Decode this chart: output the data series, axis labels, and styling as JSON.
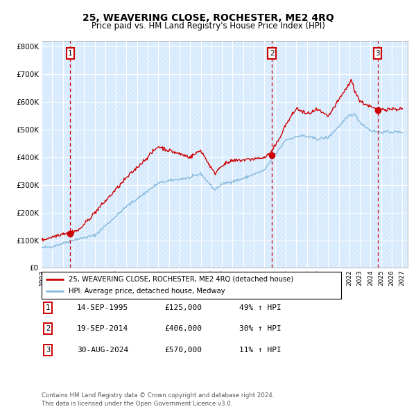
{
  "title": "25, WEAVERING CLOSE, ROCHESTER, ME2 4RQ",
  "subtitle": "Price paid vs. HM Land Registry's House Price Index (HPI)",
  "bg_color": "#ddeeff",
  "grid_color": "#ffffff",
  "red_line_color": "#cc0000",
  "blue_line_color": "#88bbdd",
  "sale_marker_color": "#cc0000",
  "dashed_line_color": "#cc0000",
  "sales": [
    {
      "date_num": 1995.71,
      "price": 125000,
      "label": "1"
    },
    {
      "date_num": 2014.72,
      "price": 406000,
      "label": "2"
    },
    {
      "date_num": 2024.66,
      "price": 570000,
      "label": "3"
    }
  ],
  "legend_entries": [
    "25, WEAVERING CLOSE, ROCHESTER, ME2 4RQ (detached house)",
    "HPI: Average price, detached house, Medway"
  ],
  "table_rows": [
    {
      "num": "1",
      "date": "14-SEP-1995",
      "price": "£125,000",
      "pct": "49% ↑ HPI"
    },
    {
      "num": "2",
      "date": "19-SEP-2014",
      "price": "£406,000",
      "pct": "30% ↑ HPI"
    },
    {
      "num": "3",
      "date": "30-AUG-2024",
      "price": "£570,000",
      "pct": "11% ↑ HPI"
    }
  ],
  "footer": "Contains HM Land Registry data © Crown copyright and database right 2024.\nThis data is licensed under the Open Government Licence v3.0.",
  "ylim": [
    0,
    820000
  ],
  "xlim_start": 1993.0,
  "xlim_end": 2027.5,
  "yticks": [
    0,
    100000,
    200000,
    300000,
    400000,
    500000,
    600000,
    700000,
    800000
  ],
  "ytick_labels": [
    "£0",
    "£100K",
    "£200K",
    "£300K",
    "£400K",
    "£500K",
    "£600K",
    "£700K",
    "£800K"
  ],
  "xtick_years": [
    1993,
    1994,
    1995,
    1996,
    1997,
    1998,
    1999,
    2000,
    2001,
    2002,
    2003,
    2004,
    2005,
    2006,
    2007,
    2008,
    2009,
    2010,
    2011,
    2012,
    2013,
    2014,
    2015,
    2016,
    2017,
    2018,
    2019,
    2020,
    2021,
    2022,
    2023,
    2024,
    2025,
    2026,
    2027
  ]
}
